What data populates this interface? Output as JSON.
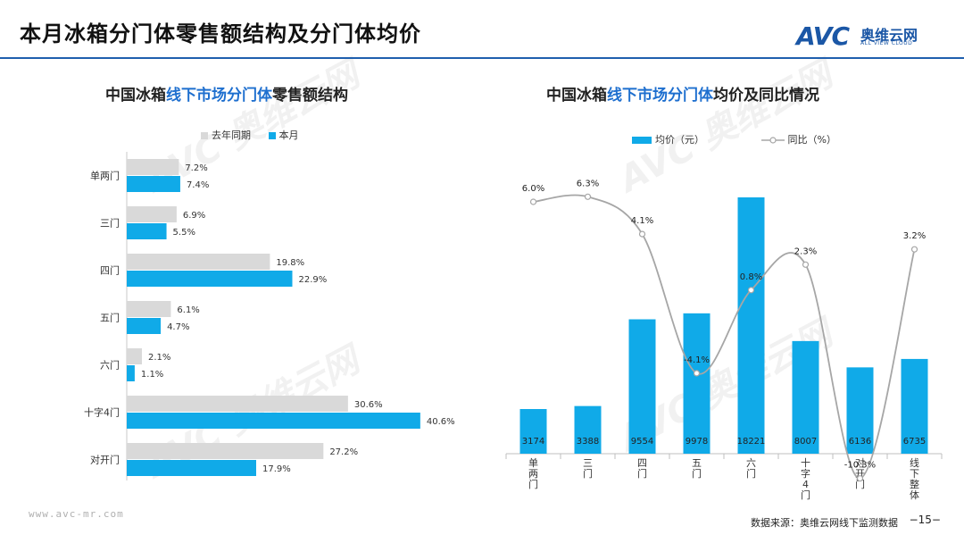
{
  "header": {
    "title": "本月冰箱分门体零售额结构及分门体均价",
    "logo_text": "AVC",
    "logo_cn": "奥维云网",
    "logo_en": "ALL VIEW CLOUD"
  },
  "left_chart": {
    "title_prefix": "中国冰箱",
    "title_highlight": "线下市场分门体",
    "title_suffix": "零售额结构"
  },
  "right_chart": {
    "title_prefix": "中国冰箱",
    "title_highlight": "线下市场分门体",
    "title_suffix": "均价及同比情况"
  },
  "footer": {
    "url": "www.avc-mr.com",
    "source": "数据来源：奥维云网线下监测数据",
    "page": "−15−"
  },
  "colors": {
    "blue": "#10aae8",
    "gray": "#d9d9d9",
    "line": "#a6a6a6",
    "accent": "#1e6fcf"
  },
  "chart_data": [
    {
      "type": "bar",
      "orientation": "horizontal",
      "title": "中国冰箱线下市场分门体零售额结构",
      "categories": [
        "单两门",
        "三门",
        "四门",
        "五门",
        "六门",
        "十字4门",
        "对开门"
      ],
      "series": [
        {
          "name": "去年同期",
          "values": [
            7.2,
            6.9,
            19.8,
            6.1,
            2.1,
            30.6,
            27.2
          ],
          "labels": [
            "7.2%",
            "6.9%",
            "19.8%",
            "6.1%",
            "2.1%",
            "30.6%",
            "27.2%"
          ]
        },
        {
          "name": "本月",
          "values": [
            7.4,
            5.5,
            22.9,
            4.7,
            1.1,
            40.6,
            17.9
          ],
          "labels": [
            "7.4%",
            "5.5%",
            "22.9%",
            "4.7%",
            "1.1%",
            "40.6%",
            "17.9%"
          ]
        }
      ],
      "unit": "%",
      "xlim": [
        0,
        45
      ]
    },
    {
      "type": "bar",
      "title": "中国冰箱线下市场分门体均价及同比情况",
      "categories": [
        "单两门",
        "三门",
        "四门",
        "五门",
        "六门",
        "十字4门",
        "对开门",
        "线下整体"
      ],
      "series": [
        {
          "name": "均价（元）",
          "type": "bar",
          "values": [
            3174,
            3388,
            9554,
            9978,
            18221,
            8007,
            6136,
            6735
          ],
          "labels": [
            "3174",
            "3388",
            "9554",
            "9978",
            "18221",
            "8007",
            "6136",
            "6735"
          ]
        },
        {
          "name": "同比（%）",
          "type": "line",
          "values": [
            6.0,
            6.3,
            4.1,
            -4.1,
            0.8,
            2.3,
            -10.3,
            3.2
          ],
          "labels": [
            "6.0%",
            "6.3%",
            "4.1%",
            "-4.1%",
            "0.8%",
            "2.3%",
            "-10.3%",
            "3.2%"
          ]
        }
      ],
      "ylim_bar": [
        0,
        20000
      ],
      "ylim_line": [
        -12,
        8
      ]
    }
  ]
}
